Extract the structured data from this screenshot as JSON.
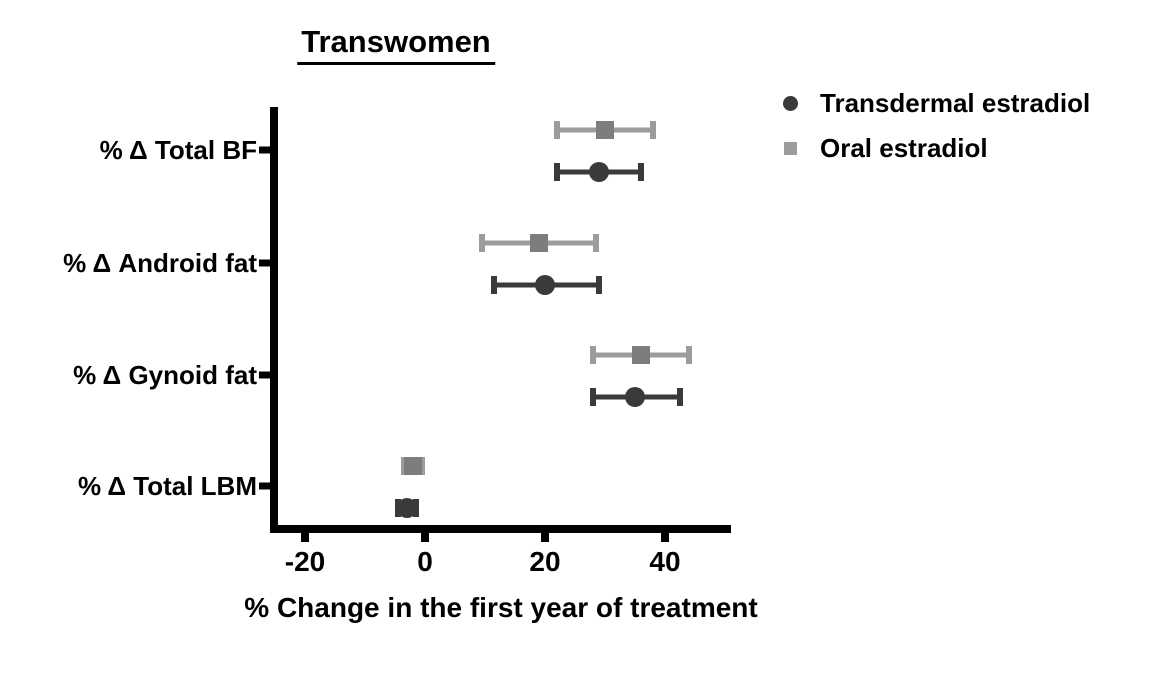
{
  "chart_data": {
    "type": "scatter",
    "subtype": "forest-plot-with-error-bars",
    "title": "Transwomen",
    "xlabel": "% Change in the first year of treatment",
    "ylabel": "",
    "categories": [
      "% Δ Total BF",
      "% Δ Android fat",
      "% Δ Gynoid fat",
      "% Δ Total LBM"
    ],
    "x_ticks": [
      "-20",
      "0",
      "20",
      "40"
    ],
    "x_tick_values": [
      -20,
      0,
      20,
      40
    ],
    "xlim": [
      -26,
      51
    ],
    "grid": false,
    "legend_position": "top-right",
    "axis_color": "#000000",
    "series": [
      {
        "name": "Transdermal estradiol",
        "marker": "circle",
        "color": "#3a3a3a",
        "values": [
          29,
          20,
          35,
          -3
        ],
        "ci_low": [
          22,
          11.5,
          28,
          -4.5
        ],
        "ci_high": [
          36,
          29,
          42.5,
          -1.5
        ]
      },
      {
        "name": "Oral estradiol",
        "marker": "square",
        "color": "#7d7d7d",
        "line_color": "#9c9c9c",
        "values": [
          30,
          19,
          36,
          -2
        ],
        "ci_low": [
          22,
          9.5,
          28,
          -3.5
        ],
        "ci_high": [
          38,
          28.5,
          44,
          -0.5
        ]
      }
    ]
  }
}
